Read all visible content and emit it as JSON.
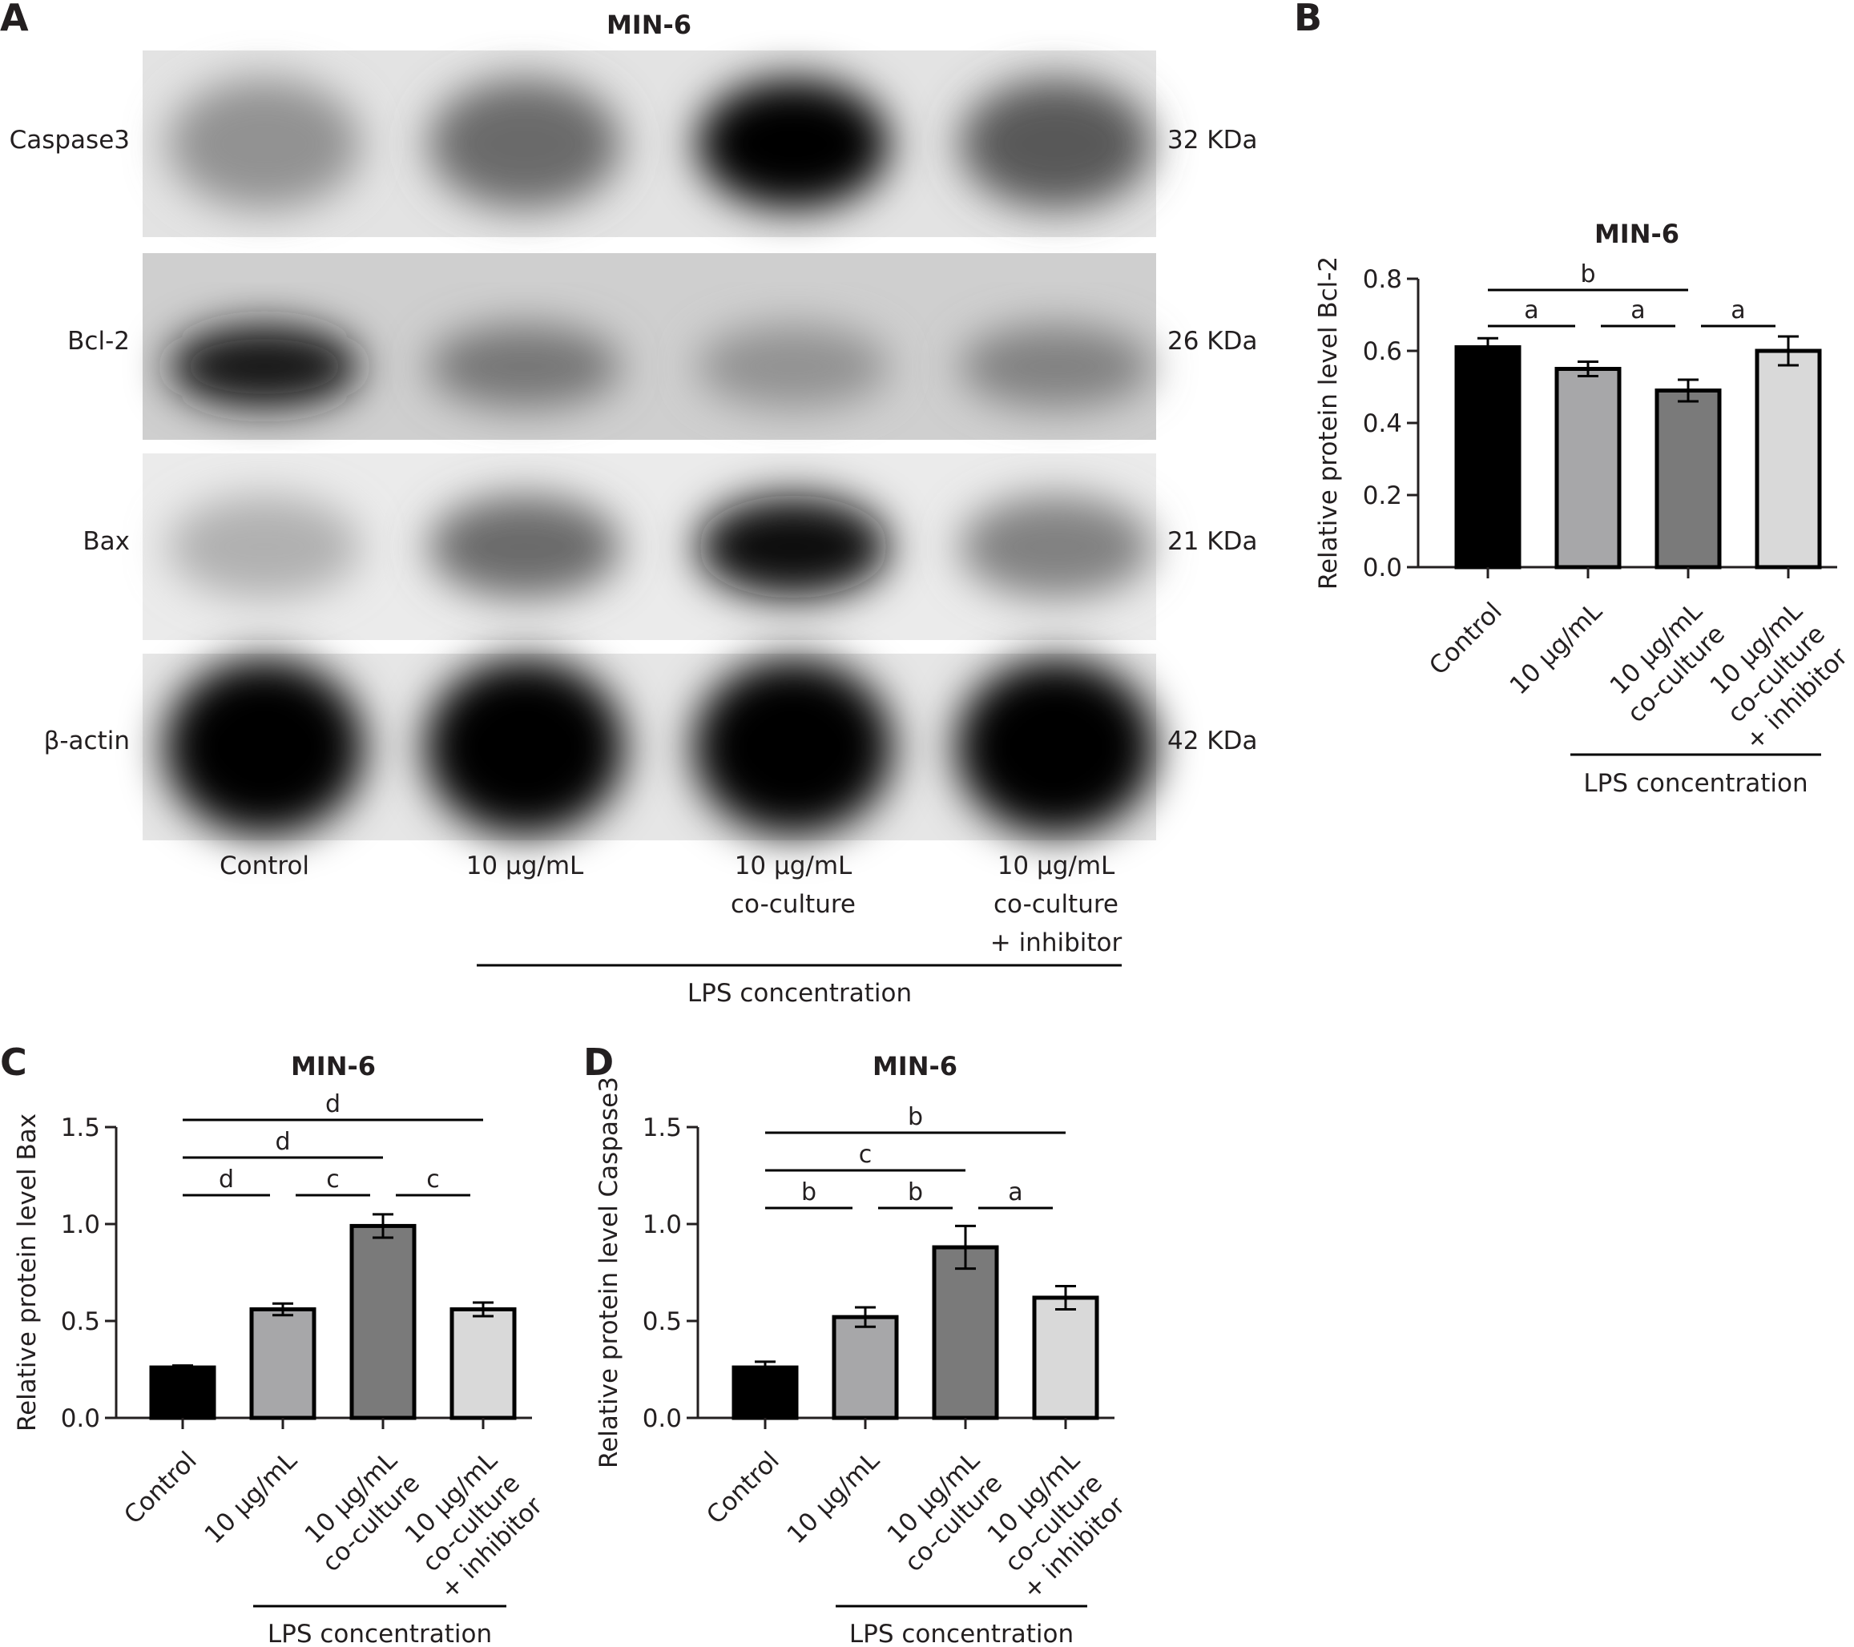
{
  "blot": {
    "letter": "A",
    "title": "MIN-6",
    "rows": [
      {
        "protein": "Caspase3",
        "weight": "32 KDa",
        "intensity": [
          0.38,
          0.55,
          1.0,
          0.62
        ],
        "height": 0.7
      },
      {
        "protein": "Bcl-2",
        "weight": "26 KDa",
        "intensity": [
          0.9,
          0.5,
          0.38,
          0.45
        ],
        "height": 0.45
      },
      {
        "protein": "Bax",
        "weight": "21 KDa",
        "intensity": [
          0.25,
          0.55,
          0.95,
          0.45
        ],
        "height": 0.55
      },
      {
        "protein": "β-actin",
        "weight": "42 KDa",
        "intensity": [
          1.0,
          1.0,
          1.0,
          1.0
        ],
        "height": 0.95
      }
    ],
    "lanes": [
      [
        "Control"
      ],
      [
        "10 μg/mL"
      ],
      [
        "10 μg/mL",
        "co-culture"
      ],
      [
        "10 μg/mL",
        "co-culture",
        "+ inhibitor"
      ]
    ],
    "group_label": "LPS concentration"
  },
  "chart_data": [
    {
      "panel": "B",
      "type": "bar",
      "title": "MIN-6",
      "ylabel": "Relative protein level Bcl-2",
      "xlabel": "LPS concentration",
      "categories": [
        "Control",
        "10 μg/mL",
        "10 μg/mL co-culture",
        "10 μg/mL co-culture + inhibitor"
      ],
      "category_lines": [
        [
          "Control"
        ],
        [
          "10 μg/mL"
        ],
        [
          "10 μg/mL",
          "co-culture"
        ],
        [
          "10 μg/mL",
          "co-culture",
          "+ inhibitor"
        ]
      ],
      "values": [
        0.61,
        0.55,
        0.49,
        0.6
      ],
      "errors": [
        0.025,
        0.02,
        0.03,
        0.04
      ],
      "colors": [
        "#000000",
        "#a7a7a9",
        "#7a7a7a",
        "#d9d9d9"
      ],
      "ylim": [
        0,
        0.8
      ],
      "yticks": [
        "0.0",
        "0.2",
        "0.4",
        "0.6",
        "0.8"
      ],
      "significance": [
        {
          "from": 0,
          "to": 2,
          "label": "b"
        },
        {
          "from": 0,
          "to": 1,
          "label": "a"
        },
        {
          "from": 1,
          "to": 2,
          "label": "a"
        },
        {
          "from": 2,
          "to": 3,
          "label": "a"
        }
      ],
      "group_from": 1
    },
    {
      "panel": "C",
      "type": "bar",
      "title": "MIN-6",
      "ylabel": "Relative protein level Bax",
      "xlabel": "LPS concentration",
      "categories": [
        "Control",
        "10 μg/mL",
        "10 μg/mL co-culture",
        "10 μg/mL co-culture + inhibitor"
      ],
      "category_lines": [
        [
          "Control"
        ],
        [
          "10 μg/mL"
        ],
        [
          "10 μg/mL",
          "co-culture"
        ],
        [
          "10 μg/mL",
          "co-culture",
          "+ inhibitor"
        ]
      ],
      "values": [
        0.26,
        0.56,
        0.99,
        0.56
      ],
      "errors": [
        0.01,
        0.03,
        0.06,
        0.035
      ],
      "colors": [
        "#000000",
        "#a7a7a9",
        "#7a7a7a",
        "#d9d9d9"
      ],
      "ylim": [
        0,
        1.5
      ],
      "yticks": [
        "0.0",
        "0.5",
        "1.0",
        "1.5"
      ],
      "significance": [
        {
          "from": 0,
          "to": 3,
          "label": "d"
        },
        {
          "from": 0,
          "to": 2,
          "label": "d"
        },
        {
          "from": 0,
          "to": 1,
          "label": "d"
        },
        {
          "from": 1,
          "to": 2,
          "label": "c"
        },
        {
          "from": 2,
          "to": 3,
          "label": "c"
        }
      ],
      "group_from": 1
    },
    {
      "panel": "D",
      "type": "bar",
      "title": "MIN-6",
      "ylabel": "Relative protein level Caspase3",
      "xlabel": "LPS concentration",
      "categories": [
        "Control",
        "10 μg/mL",
        "10 μg/mL co-culture",
        "10 μg/mL co-culture + inhibitor"
      ],
      "category_lines": [
        [
          "Control"
        ],
        [
          "10 μg/mL"
        ],
        [
          "10 μg/mL",
          "co-culture"
        ],
        [
          "10 μg/mL",
          "co-culture",
          "+ inhibitor"
        ]
      ],
      "values": [
        0.26,
        0.52,
        0.88,
        0.62
      ],
      "errors": [
        0.03,
        0.05,
        0.11,
        0.06
      ],
      "colors": [
        "#000000",
        "#a7a7a9",
        "#7a7a7a",
        "#d9d9d9"
      ],
      "ylim": [
        0,
        1.5
      ],
      "yticks": [
        "0.0",
        "0.5",
        "1.0",
        "1.5"
      ],
      "significance": [
        {
          "from": 0,
          "to": 3,
          "label": "b"
        },
        {
          "from": 0,
          "to": 2,
          "label": "c"
        },
        {
          "from": 0,
          "to": 1,
          "label": "b"
        },
        {
          "from": 1,
          "to": 2,
          "label": "b"
        },
        {
          "from": 2,
          "to": 3,
          "label": "a"
        }
      ],
      "group_from": 1
    }
  ]
}
